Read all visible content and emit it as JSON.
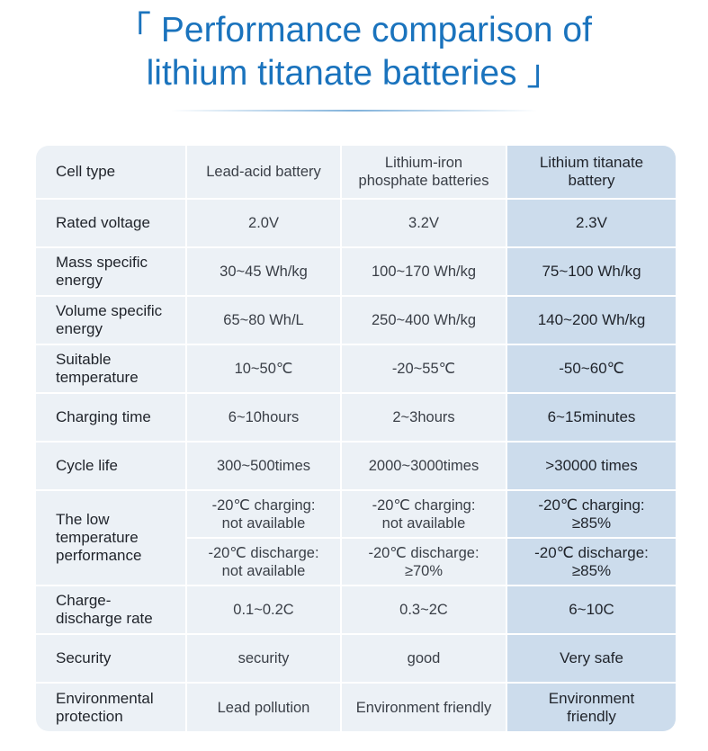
{
  "title": {
    "open_bracket": "「",
    "line1": "Performance comparison of",
    "line2": "lithium titanate batteries",
    "close_bracket": "」"
  },
  "table": {
    "header": {
      "label": "Cell type",
      "lead_acid": "Lead-acid battery",
      "lfp": "Lithium-iron\nphosphate batteries",
      "lto": "Lithium titanate\nbattery"
    },
    "rows": [
      {
        "label": "Rated voltage",
        "lead_acid": "2.0V",
        "lfp": "3.2V",
        "lto": "2.3V"
      },
      {
        "label": "Mass specific\nenergy",
        "lead_acid": "30~45 Wh/kg",
        "lfp": "100~170 Wh/kg",
        "lto": "75~100 Wh/kg"
      },
      {
        "label": "Volume  specific\nenergy",
        "lead_acid": "65~80 Wh/L",
        "lfp": "250~400 Wh/kg",
        "lto": "140~200 Wh/kg"
      },
      {
        "label": "Suitable\ntemperature",
        "lead_acid": "10~50℃",
        "lfp": "-20~55℃",
        "lto": "-50~60℃"
      },
      {
        "label": "Charging time",
        "lead_acid": "6~10hours",
        "lfp": "2~3hours",
        "lto": "6~15minutes"
      },
      {
        "label": "Cycle life",
        "lead_acid": "300~500times",
        "lfp": "2000~3000times",
        "lto": ">30000 times"
      }
    ],
    "low_temp": {
      "label": "The low\ntemperature\nperformance",
      "charging": {
        "lead_acid": "-20℃ charging:\nnot available",
        "lfp": "-20℃ charging:\nnot available",
        "lto": "-20℃ charging:\n≥85%"
      },
      "discharge": {
        "lead_acid": "-20℃ discharge:\nnot available",
        "lfp": "-20℃ discharge:\n≥70%",
        "lto": "-20℃ discharge:\n≥85%"
      }
    },
    "rows2": [
      {
        "label": "Charge-\ndischarge rate",
        "lead_acid": "0.1~0.2C",
        "lfp": "0.3~2C",
        "lto": "6~10C"
      },
      {
        "label": "Security",
        "lead_acid": "security",
        "lfp": "good",
        "lto": "Very safe"
      },
      {
        "label": "Environmental\nprotection",
        "lead_acid": "Lead pollution",
        "lfp": "Environment friendly",
        "lto": "Environment\nfriendly"
      }
    ]
  },
  "colors": {
    "title": "#1a73bd",
    "cell_bg": "#ecf1f6",
    "highlight_bg": "#ccdcec"
  }
}
